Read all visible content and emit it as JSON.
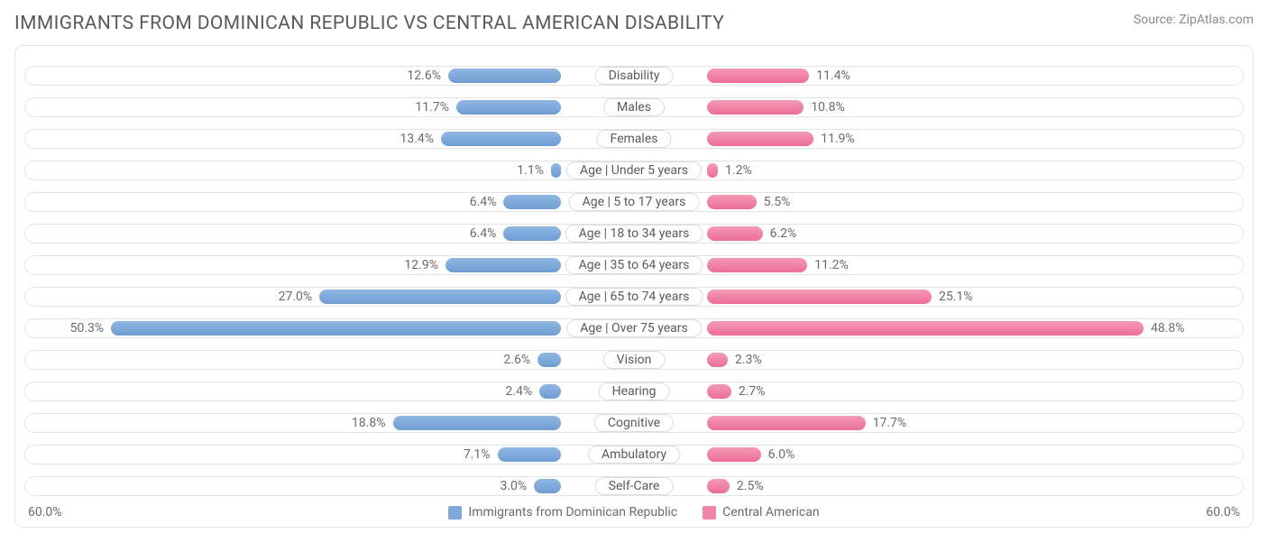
{
  "title": "IMMIGRANTS FROM DOMINICAN REPUBLIC VS CENTRAL AMERICAN DISABILITY",
  "source": "Source: ZipAtlas.com",
  "chart": {
    "type": "diverging-bar",
    "axis_max": 60.0,
    "axis_max_label_left": "60.0%",
    "axis_max_label_right": "60.0%",
    "background_color": "#ffffff",
    "track_border_color": "#e4e4e4",
    "label_border_color": "#dcdcdc",
    "text_color": "#6b6b6b",
    "left": {
      "name": "Immigrants from Dominican Republic",
      "bar_fill": "linear-gradient(to bottom, #8fb7e3, #6f9dd3)",
      "swatch": "#7fa8db"
    },
    "right": {
      "name": "Central American",
      "bar_fill": "linear-gradient(to bottom, #f49ab6, #ed6d99)",
      "swatch": "#f185a8"
    },
    "rows": [
      {
        "label": "Disability",
        "left_val": 12.6,
        "right_val": 11.4,
        "left_txt": "12.6%",
        "right_txt": "11.4%"
      },
      {
        "label": "Males",
        "left_val": 11.7,
        "right_val": 10.8,
        "left_txt": "11.7%",
        "right_txt": "10.8%"
      },
      {
        "label": "Females",
        "left_val": 13.4,
        "right_val": 11.9,
        "left_txt": "13.4%",
        "right_txt": "11.9%"
      },
      {
        "label": "Age | Under 5 years",
        "left_val": 1.1,
        "right_val": 1.2,
        "left_txt": "1.1%",
        "right_txt": "1.2%"
      },
      {
        "label": "Age | 5 to 17 years",
        "left_val": 6.4,
        "right_val": 5.5,
        "left_txt": "6.4%",
        "right_txt": "5.5%"
      },
      {
        "label": "Age | 18 to 34 years",
        "left_val": 6.4,
        "right_val": 6.2,
        "left_txt": "6.4%",
        "right_txt": "6.2%"
      },
      {
        "label": "Age | 35 to 64 years",
        "left_val": 12.9,
        "right_val": 11.2,
        "left_txt": "12.9%",
        "right_txt": "11.2%"
      },
      {
        "label": "Age | 65 to 74 years",
        "left_val": 27.0,
        "right_val": 25.1,
        "left_txt": "27.0%",
        "right_txt": "25.1%"
      },
      {
        "label": "Age | Over 75 years",
        "left_val": 50.3,
        "right_val": 48.8,
        "left_txt": "50.3%",
        "right_txt": "48.8%"
      },
      {
        "label": "Vision",
        "left_val": 2.6,
        "right_val": 2.3,
        "left_txt": "2.6%",
        "right_txt": "2.3%"
      },
      {
        "label": "Hearing",
        "left_val": 2.4,
        "right_val": 2.7,
        "left_txt": "2.4%",
        "right_txt": "2.7%"
      },
      {
        "label": "Cognitive",
        "left_val": 18.8,
        "right_val": 17.7,
        "left_txt": "18.8%",
        "right_txt": "17.7%"
      },
      {
        "label": "Ambulatory",
        "left_val": 7.1,
        "right_val": 6.0,
        "left_txt": "7.1%",
        "right_txt": "6.0%"
      },
      {
        "label": "Self-Care",
        "left_val": 3.0,
        "right_val": 2.5,
        "left_txt": "3.0%",
        "right_txt": "2.5%"
      }
    ]
  }
}
